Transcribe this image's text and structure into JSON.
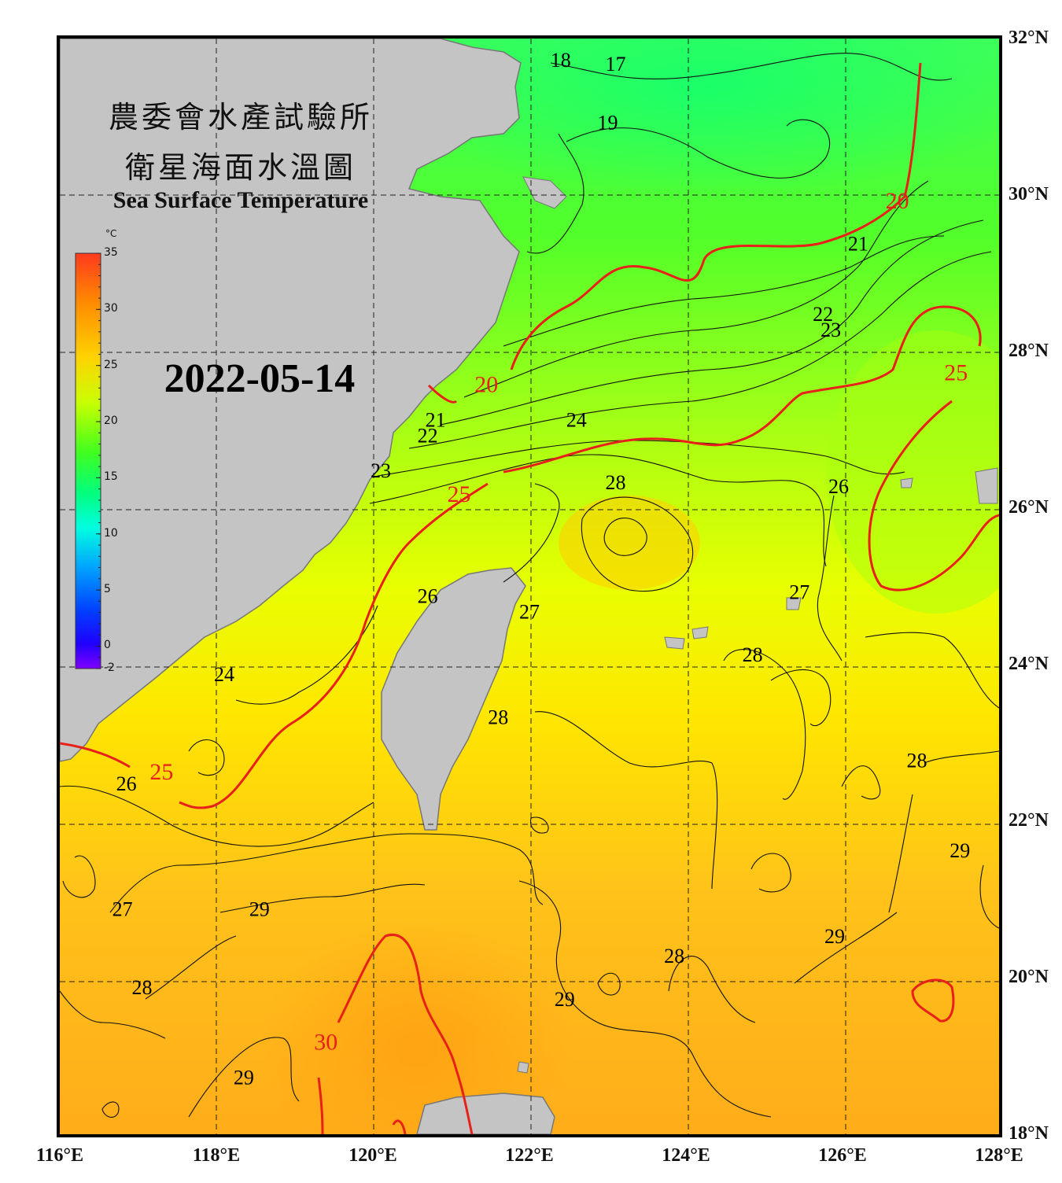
{
  "title": {
    "line1": "農委會水產試驗所",
    "line2": "衛星海面水溫圖",
    "english": "Sea Surface Temperature"
  },
  "date": "2022-05-14",
  "colorbar": {
    "unit": "°C",
    "ticks": [
      "35",
      "30",
      "25",
      "20",
      "15",
      "10",
      "5",
      "0",
      "-2"
    ],
    "tick_values": [
      35,
      30,
      25,
      20,
      15,
      10,
      5,
      0,
      -2
    ],
    "colors": [
      "#ff3a1e",
      "#ff8c00",
      "#ffd200",
      "#c8ff00",
      "#40ff20",
      "#00ff80",
      "#00ffe0",
      "#00a0ff",
      "#0040ff",
      "#2000ff",
      "#8000ff"
    ]
  },
  "axes": {
    "lon_labels": [
      "116°E",
      "118°E",
      "120°E",
      "122°E",
      "124°E",
      "126°E",
      "128°E"
    ],
    "lon_values": [
      116,
      118,
      120,
      122,
      124,
      126,
      128
    ],
    "lat_labels": [
      "32°N",
      "30°N",
      "28°N",
      "26°N",
      "24°N",
      "22°N",
      "20°N",
      "18°N"
    ],
    "lat_values": [
      32,
      30,
      28,
      26,
      24,
      22,
      20,
      18
    ]
  },
  "contour_labels": [
    {
      "text": "18",
      "lon": 122.4,
      "lat": 31.7,
      "major": false
    },
    {
      "text": "17",
      "lon": 123.1,
      "lat": 31.65,
      "major": false
    },
    {
      "text": "19",
      "lon": 123.0,
      "lat": 30.9,
      "major": false
    },
    {
      "text": "20",
      "lon": 126.7,
      "lat": 29.9,
      "major": true
    },
    {
      "text": "21",
      "lon": 126.2,
      "lat": 29.35,
      "major": false
    },
    {
      "text": "22",
      "lon": 125.75,
      "lat": 28.45,
      "major": false
    },
    {
      "text": "23",
      "lon": 125.85,
      "lat": 28.25,
      "major": false
    },
    {
      "text": "25",
      "lon": 127.45,
      "lat": 27.7,
      "major": true
    },
    {
      "text": "20",
      "lon": 121.45,
      "lat": 27.55,
      "major": true
    },
    {
      "text": "21",
      "lon": 120.8,
      "lat": 27.1,
      "major": false
    },
    {
      "text": "22",
      "lon": 120.7,
      "lat": 26.9,
      "major": false
    },
    {
      "text": "24",
      "lon": 122.6,
      "lat": 27.1,
      "major": false
    },
    {
      "text": "23",
      "lon": 120.1,
      "lat": 26.45,
      "major": false
    },
    {
      "text": "25",
      "lon": 121.1,
      "lat": 26.15,
      "major": true
    },
    {
      "text": "28",
      "lon": 123.1,
      "lat": 26.3,
      "major": false
    },
    {
      "text": "26",
      "lon": 125.95,
      "lat": 26.25,
      "major": false
    },
    {
      "text": "26",
      "lon": 120.7,
      "lat": 24.85,
      "major": false
    },
    {
      "text": "27",
      "lon": 122.0,
      "lat": 24.65,
      "major": false
    },
    {
      "text": "27",
      "lon": 125.45,
      "lat": 24.9,
      "major": false
    },
    {
      "text": "28",
      "lon": 124.85,
      "lat": 24.1,
      "major": false
    },
    {
      "text": "24",
      "lon": 118.1,
      "lat": 23.85,
      "major": false
    },
    {
      "text": "28",
      "lon": 121.6,
      "lat": 23.3,
      "major": false
    },
    {
      "text": "25",
      "lon": 117.3,
      "lat": 22.6,
      "major": true
    },
    {
      "text": "28",
      "lon": 126.95,
      "lat": 22.75,
      "major": false
    },
    {
      "text": "26",
      "lon": 116.85,
      "lat": 22.45,
      "major": false
    },
    {
      "text": "29",
      "lon": 127.5,
      "lat": 21.6,
      "major": false
    },
    {
      "text": "27",
      "lon": 116.8,
      "lat": 20.85,
      "major": false
    },
    {
      "text": "29",
      "lon": 118.55,
      "lat": 20.85,
      "major": false
    },
    {
      "text": "29",
      "lon": 125.9,
      "lat": 20.5,
      "major": false
    },
    {
      "text": "28",
      "lon": 123.85,
      "lat": 20.25,
      "major": false
    },
    {
      "text": "28",
      "lon": 117.05,
      "lat": 19.85,
      "major": false
    },
    {
      "text": "29",
      "lon": 122.45,
      "lat": 19.7,
      "major": false
    },
    {
      "text": "30",
      "lon": 119.4,
      "lat": 19.15,
      "major": true
    },
    {
      "text": "29",
      "lon": 118.35,
      "lat": 18.7,
      "major": false
    }
  ]
}
